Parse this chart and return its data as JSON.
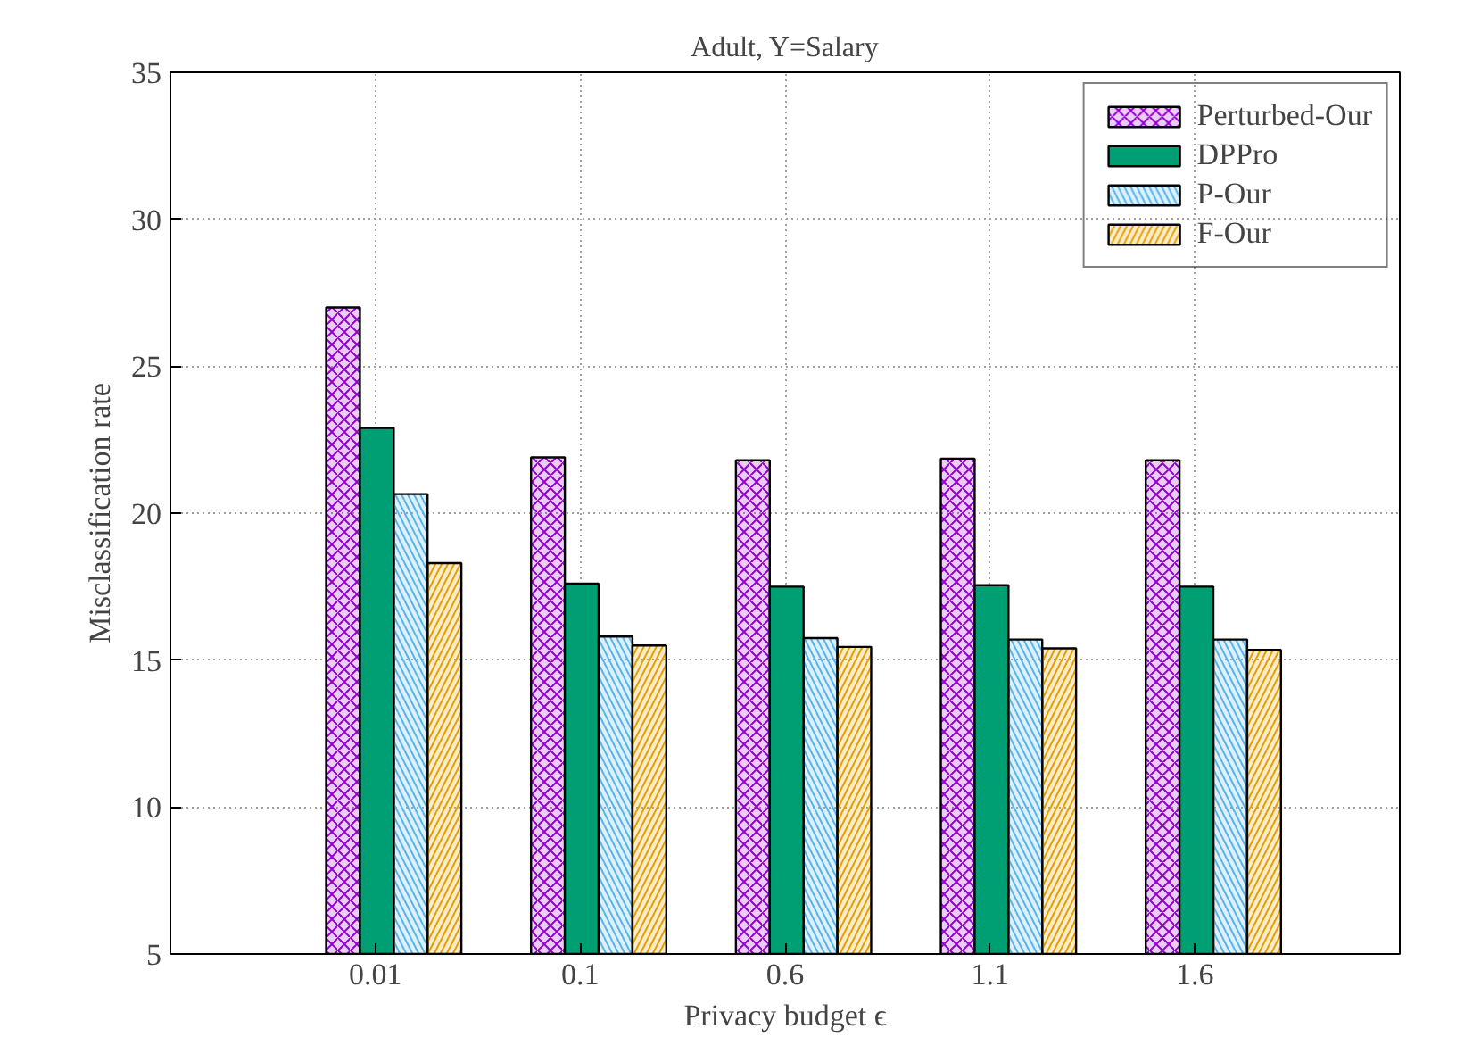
{
  "chart_data": {
    "type": "bar",
    "title": "Adult, Y=Salary",
    "xlabel": "Privacy budget ϵ",
    "ylabel": "Misclassification rate",
    "categories": [
      "0.01",
      "0.1",
      "0.6",
      "1.1",
      "1.6"
    ],
    "series": [
      {
        "name": "Perturbed-Our",
        "color": "#9400d3",
        "values": [
          27.0,
          21.9,
          21.8,
          21.85,
          21.8
        ]
      },
      {
        "name": "DPPro",
        "color": "#009e73",
        "values": [
          22.9,
          17.6,
          17.5,
          17.55,
          17.5
        ]
      },
      {
        "name": "P-Our",
        "color": "#56b4e9",
        "values": [
          20.65,
          15.8,
          15.75,
          15.7,
          15.7
        ]
      },
      {
        "name": "F-Our",
        "color": "#e69f00",
        "values": [
          18.3,
          15.5,
          15.45,
          15.4,
          15.35
        ]
      }
    ],
    "ylim": [
      5,
      35
    ],
    "yticks": [
      5,
      10,
      15,
      20,
      25,
      30,
      35
    ],
    "grid": true,
    "legend": "top right"
  }
}
